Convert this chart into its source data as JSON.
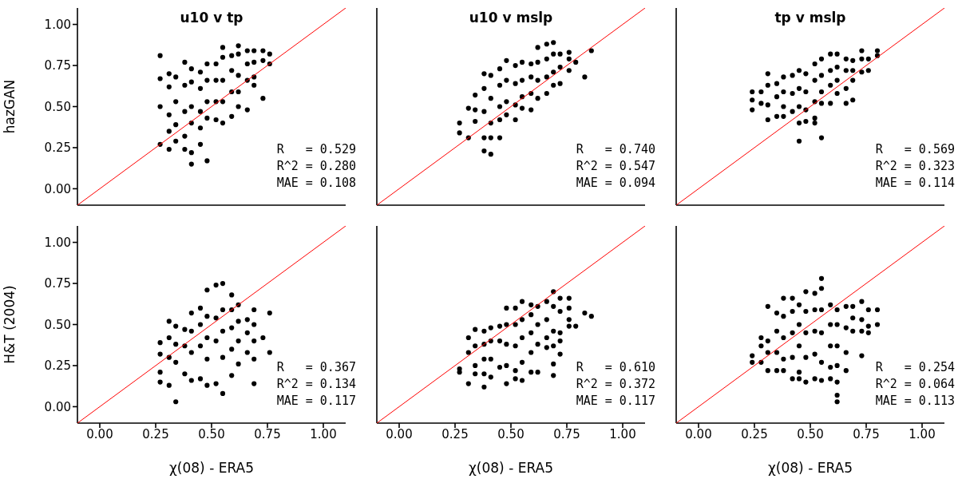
{
  "chart_data": [
    {
      "type": "scatter",
      "title": "u10 v tp",
      "ylabel": "hazGAN",
      "xlim": [
        -0.1,
        1.1
      ],
      "ylim": [
        -0.1,
        1.1
      ],
      "xticks": [
        {
          "value": 0,
          "label": null
        },
        {
          "value": 0.25,
          "label": null
        },
        {
          "value": 0.5,
          "label": null
        },
        {
          "value": 0.75,
          "label": null
        },
        {
          "value": 1,
          "label": null
        }
      ],
      "yticks": [
        {
          "value": 0,
          "label": "0.00"
        },
        {
          "value": 0.25,
          "label": "0.25"
        },
        {
          "value": 0.5,
          "label": "0.50"
        },
        {
          "value": 0.75,
          "label": "0.75"
        },
        {
          "value": 1,
          "label": "1.00"
        }
      ],
      "tick_labels": "y",
      "annotations": [
        "R   = 0.529",
        "R^2 = 0.280",
        "MAE = 0.108"
      ],
      "series": [
        {
          "type": "scatter",
          "marker": "circle",
          "color": "#000000",
          "x": [
            0.27,
            0.27,
            0.27,
            0.27,
            0.31,
            0.31,
            0.31,
            0.31,
            0.31,
            0.34,
            0.34,
            0.34,
            0.34,
            0.38,
            0.38,
            0.38,
            0.38,
            0.38,
            0.41,
            0.41,
            0.41,
            0.41,
            0.41,
            0.41,
            0.45,
            0.45,
            0.45,
            0.45,
            0.45,
            0.48,
            0.48,
            0.48,
            0.48,
            0.48,
            0.52,
            0.52,
            0.52,
            0.52,
            0.55,
            0.55,
            0.55,
            0.55,
            0.55,
            0.59,
            0.59,
            0.59,
            0.59,
            0.62,
            0.62,
            0.62,
            0.62,
            0.62,
            0.66,
            0.66,
            0.66,
            0.66,
            0.69,
            0.69,
            0.69,
            0.69,
            0.73,
            0.73,
            0.73,
            0.76,
            0.76
          ],
          "values": [
            0.81,
            0.67,
            0.5,
            0.27,
            0.7,
            0.62,
            0.45,
            0.35,
            0.24,
            0.68,
            0.53,
            0.39,
            0.29,
            0.77,
            0.63,
            0.47,
            0.32,
            0.24,
            0.73,
            0.65,
            0.5,
            0.4,
            0.22,
            0.15,
            0.71,
            0.61,
            0.47,
            0.37,
            0.27,
            0.76,
            0.66,
            0.53,
            0.43,
            0.17,
            0.76,
            0.66,
            0.53,
            0.42,
            0.86,
            0.8,
            0.66,
            0.53,
            0.4,
            0.81,
            0.72,
            0.59,
            0.44,
            0.87,
            0.82,
            0.69,
            0.59,
            0.5,
            0.84,
            0.76,
            0.66,
            0.48,
            0.84,
            0.77,
            0.68,
            0.63,
            0.84,
            0.78,
            0.55,
            0.82,
            0.76
          ]
        },
        {
          "type": "line",
          "marker": "none",
          "color": "#ff0000",
          "x": [
            -0.1,
            1.1
          ],
          "values": [
            -0.1,
            1.1
          ]
        }
      ]
    },
    {
      "type": "scatter",
      "title": "u10 v mslp",
      "xlim": [
        -0.1,
        1.1
      ],
      "ylim": [
        -0.1,
        1.1
      ],
      "xticks": [
        {
          "value": 0,
          "label": null
        },
        {
          "value": 0.25,
          "label": null
        },
        {
          "value": 0.5,
          "label": null
        },
        {
          "value": 0.75,
          "label": null
        },
        {
          "value": 1,
          "label": null
        }
      ],
      "yticks": [
        {
          "value": 0,
          "label": null
        },
        {
          "value": 0.25,
          "label": null
        },
        {
          "value": 0.5,
          "label": null
        },
        {
          "value": 0.75,
          "label": null
        },
        {
          "value": 1,
          "label": null
        }
      ],
      "tick_labels": false,
      "annotations": [
        "R   = 0.740",
        "R^2 = 0.547",
        "MAE = 0.094"
      ],
      "series": [
        {
          "type": "scatter",
          "marker": "circle",
          "color": "#000000",
          "x": [
            0.27,
            0.27,
            0.31,
            0.31,
            0.34,
            0.34,
            0.34,
            0.38,
            0.38,
            0.38,
            0.38,
            0.38,
            0.41,
            0.41,
            0.41,
            0.41,
            0.41,
            0.45,
            0.45,
            0.45,
            0.45,
            0.45,
            0.48,
            0.48,
            0.48,
            0.48,
            0.52,
            0.52,
            0.52,
            0.52,
            0.55,
            0.55,
            0.55,
            0.55,
            0.59,
            0.59,
            0.59,
            0.59,
            0.62,
            0.62,
            0.62,
            0.62,
            0.66,
            0.66,
            0.66,
            0.66,
            0.69,
            0.69,
            0.69,
            0.69,
            0.72,
            0.72,
            0.72,
            0.76,
            0.76,
            0.76,
            0.79,
            0.83,
            0.86
          ],
          "values": [
            0.4,
            0.34,
            0.49,
            0.31,
            0.57,
            0.48,
            0.41,
            0.7,
            0.61,
            0.47,
            0.31,
            0.23,
            0.69,
            0.55,
            0.4,
            0.31,
            0.21,
            0.73,
            0.63,
            0.5,
            0.42,
            0.31,
            0.78,
            0.66,
            0.53,
            0.45,
            0.75,
            0.64,
            0.51,
            0.42,
            0.77,
            0.66,
            0.56,
            0.49,
            0.76,
            0.68,
            0.58,
            0.48,
            0.86,
            0.77,
            0.66,
            0.55,
            0.88,
            0.79,
            0.68,
            0.58,
            0.89,
            0.82,
            0.71,
            0.63,
            0.82,
            0.74,
            0.64,
            0.83,
            0.79,
            0.72,
            0.77,
            0.68,
            0.84
          ]
        },
        {
          "type": "line",
          "marker": "none",
          "color": "#ff0000",
          "x": [
            -0.1,
            1.1
          ],
          "values": [
            -0.1,
            1.1
          ]
        }
      ]
    },
    {
      "type": "scatter",
      "title": "tp v mslp",
      "xlim": [
        -0.1,
        1.1
      ],
      "ylim": [
        -0.1,
        1.1
      ],
      "xticks": [
        {
          "value": 0,
          "label": null
        },
        {
          "value": 0.25,
          "label": null
        },
        {
          "value": 0.5,
          "label": null
        },
        {
          "value": 0.75,
          "label": null
        },
        {
          "value": 1,
          "label": null
        }
      ],
      "yticks": [
        {
          "value": 0,
          "label": null
        },
        {
          "value": 0.25,
          "label": null
        },
        {
          "value": 0.5,
          "label": null
        },
        {
          "value": 0.75,
          "label": null
        },
        {
          "value": 1,
          "label": null
        }
      ],
      "tick_labels": false,
      "annotations": [
        "R   = 0.569",
        "R^2 = 0.323",
        "MAE = 0.114"
      ],
      "series": [
        {
          "type": "scatter",
          "marker": "circle",
          "color": "#000000",
          "x": [
            0.24,
            0.24,
            0.24,
            0.28,
            0.28,
            0.31,
            0.31,
            0.31,
            0.31,
            0.35,
            0.35,
            0.35,
            0.38,
            0.38,
            0.38,
            0.38,
            0.42,
            0.42,
            0.42,
            0.45,
            0.45,
            0.45,
            0.45,
            0.45,
            0.48,
            0.48,
            0.48,
            0.48,
            0.52,
            0.52,
            0.52,
            0.52,
            0.52,
            0.55,
            0.55,
            0.55,
            0.55,
            0.55,
            0.59,
            0.59,
            0.59,
            0.59,
            0.62,
            0.62,
            0.62,
            0.62,
            0.66,
            0.66,
            0.66,
            0.66,
            0.69,
            0.69,
            0.69,
            0.69,
            0.73,
            0.73,
            0.73,
            0.76,
            0.76,
            0.8,
            0.8
          ],
          "values": [
            0.59,
            0.54,
            0.48,
            0.59,
            0.52,
            0.7,
            0.63,
            0.51,
            0.42,
            0.64,
            0.56,
            0.44,
            0.68,
            0.59,
            0.5,
            0.44,
            0.69,
            0.58,
            0.47,
            0.72,
            0.61,
            0.5,
            0.4,
            0.29,
            0.7,
            0.59,
            0.48,
            0.41,
            0.76,
            0.66,
            0.53,
            0.43,
            0.4,
            0.79,
            0.69,
            0.59,
            0.52,
            0.31,
            0.82,
            0.72,
            0.63,
            0.52,
            0.82,
            0.74,
            0.66,
            0.58,
            0.79,
            0.72,
            0.61,
            0.52,
            0.78,
            0.72,
            0.66,
            0.54,
            0.84,
            0.79,
            0.71,
            0.79,
            0.72,
            0.84,
            0.81
          ]
        },
        {
          "type": "line",
          "marker": "none",
          "color": "#ff0000",
          "x": [
            -0.1,
            1.1
          ],
          "values": [
            -0.1,
            1.1
          ]
        }
      ]
    },
    {
      "type": "scatter",
      "ylabel": "H&T (2004)",
      "xlabel": "χ(08) - ERA5",
      "xlim": [
        -0.1,
        1.1
      ],
      "ylim": [
        -0.1,
        1.1
      ],
      "xticks": [
        {
          "value": 0,
          "label": "0.00"
        },
        {
          "value": 0.25,
          "label": "0.25"
        },
        {
          "value": 0.5,
          "label": "0.50"
        },
        {
          "value": 0.75,
          "label": "0.75"
        },
        {
          "value": 1,
          "label": "1.00"
        }
      ],
      "yticks": [
        {
          "value": 0,
          "label": "0.00"
        },
        {
          "value": 0.25,
          "label": "0.25"
        },
        {
          "value": 0.5,
          "label": "0.50"
        },
        {
          "value": 0.75,
          "label": "0.75"
        },
        {
          "value": 1,
          "label": "1.00"
        }
      ],
      "annotations": [
        "R   = 0.367",
        "R^2 = 0.134",
        "MAE = 0.117"
      ],
      "series": [
        {
          "type": "scatter",
          "marker": "circle",
          "color": "#000000",
          "x": [
            0.27,
            0.27,
            0.27,
            0.27,
            0.31,
            0.31,
            0.31,
            0.31,
            0.34,
            0.34,
            0.34,
            0.34,
            0.38,
            0.38,
            0.38,
            0.41,
            0.41,
            0.41,
            0.41,
            0.45,
            0.45,
            0.45,
            0.45,
            0.48,
            0.48,
            0.48,
            0.48,
            0.48,
            0.52,
            0.52,
            0.52,
            0.52,
            0.55,
            0.55,
            0.55,
            0.55,
            0.55,
            0.59,
            0.59,
            0.59,
            0.59,
            0.59,
            0.62,
            0.62,
            0.62,
            0.62,
            0.66,
            0.66,
            0.66,
            0.69,
            0.69,
            0.69,
            0.69,
            0.69,
            0.73,
            0.76,
            0.76
          ],
          "values": [
            0.39,
            0.32,
            0.21,
            0.15,
            0.52,
            0.42,
            0.3,
            0.13,
            0.49,
            0.38,
            0.27,
            0.03,
            0.47,
            0.37,
            0.2,
            0.57,
            0.46,
            0.33,
            0.16,
            0.6,
            0.5,
            0.37,
            0.17,
            0.71,
            0.55,
            0.42,
            0.29,
            0.13,
            0.74,
            0.54,
            0.4,
            0.14,
            0.75,
            0.59,
            0.46,
            0.3,
            0.08,
            0.68,
            0.59,
            0.48,
            0.35,
            0.19,
            0.62,
            0.52,
            0.4,
            0.26,
            0.53,
            0.45,
            0.33,
            0.59,
            0.5,
            0.4,
            0.29,
            0.14,
            0.42,
            0.57,
            0.33
          ]
        },
        {
          "type": "line",
          "marker": "none",
          "color": "#ff0000",
          "x": [
            -0.1,
            1.1
          ],
          "values": [
            -0.1,
            1.1
          ]
        }
      ]
    },
    {
      "type": "scatter",
      "xlabel": "χ(08) - ERA5",
      "xlim": [
        -0.1,
        1.1
      ],
      "ylim": [
        -0.1,
        1.1
      ],
      "xticks": [
        {
          "value": 0,
          "label": "0.00"
        },
        {
          "value": 0.25,
          "label": "0.25"
        },
        {
          "value": 0.5,
          "label": "0.50"
        },
        {
          "value": 0.75,
          "label": "0.75"
        },
        {
          "value": 1,
          "label": "1.00"
        }
      ],
      "yticks": [
        {
          "value": 0,
          "label": null
        },
        {
          "value": 0.25,
          "label": null
        },
        {
          "value": 0.5,
          "label": null
        },
        {
          "value": 0.75,
          "label": null
        },
        {
          "value": 1,
          "label": null
        }
      ],
      "tick_labels": "x",
      "annotations": [
        "R   = 0.610",
        "R^2 = 0.372",
        "MAE = 0.117"
      ],
      "series": [
        {
          "type": "scatter",
          "marker": "circle",
          "color": "#000000",
          "x": [
            0.27,
            0.27,
            0.31,
            0.31,
            0.31,
            0.34,
            0.34,
            0.34,
            0.34,
            0.38,
            0.38,
            0.38,
            0.38,
            0.38,
            0.41,
            0.41,
            0.41,
            0.41,
            0.45,
            0.45,
            0.45,
            0.48,
            0.48,
            0.48,
            0.48,
            0.48,
            0.52,
            0.52,
            0.52,
            0.52,
            0.52,
            0.55,
            0.55,
            0.55,
            0.55,
            0.55,
            0.59,
            0.59,
            0.59,
            0.59,
            0.59,
            0.62,
            0.62,
            0.62,
            0.62,
            0.66,
            0.66,
            0.66,
            0.66,
            0.69,
            0.69,
            0.69,
            0.69,
            0.69,
            0.69,
            0.72,
            0.72,
            0.72,
            0.72,
            0.72,
            0.76,
            0.76,
            0.76,
            0.76,
            0.79,
            0.83,
            0.86
          ],
          "values": [
            0.23,
            0.21,
            0.42,
            0.33,
            0.14,
            0.47,
            0.37,
            0.25,
            0.2,
            0.46,
            0.38,
            0.29,
            0.2,
            0.12,
            0.48,
            0.4,
            0.29,
            0.18,
            0.49,
            0.4,
            0.24,
            0.6,
            0.5,
            0.38,
            0.25,
            0.14,
            0.6,
            0.5,
            0.37,
            0.22,
            0.17,
            0.64,
            0.53,
            0.42,
            0.27,
            0.16,
            0.62,
            0.56,
            0.45,
            0.33,
            0.21,
            0.61,
            0.5,
            0.38,
            0.21,
            0.64,
            0.53,
            0.42,
            0.36,
            0.7,
            0.61,
            0.46,
            0.37,
            0.26,
            0.19,
            0.66,
            0.58,
            0.45,
            0.4,
            0.32,
            0.66,
            0.6,
            0.53,
            0.49,
            0.49,
            0.57,
            0.55
          ]
        },
        {
          "type": "line",
          "marker": "none",
          "color": "#ff0000",
          "x": [
            -0.1,
            1.1
          ],
          "values": [
            -0.1,
            1.1
          ]
        }
      ]
    },
    {
      "type": "scatter",
      "xlabel": "χ(08) - ERA5",
      "xlim": [
        -0.1,
        1.1
      ],
      "ylim": [
        -0.1,
        1.1
      ],
      "xticks": [
        {
          "value": 0,
          "label": "0.00"
        },
        {
          "value": 0.25,
          "label": "0.25"
        },
        {
          "value": 0.5,
          "label": "0.50"
        },
        {
          "value": 0.75,
          "label": "0.75"
        },
        {
          "value": 1,
          "label": "1.00"
        }
      ],
      "yticks": [
        {
          "value": 0,
          "label": null
        },
        {
          "value": 0.25,
          "label": null
        },
        {
          "value": 0.5,
          "label": null
        },
        {
          "value": 0.75,
          "label": null
        },
        {
          "value": 1,
          "label": null
        }
      ],
      "tick_labels": "x",
      "annotations": [
        "R   = 0.254",
        "R^2 = 0.064",
        "MAE = 0.113"
      ],
      "series": [
        {
          "type": "scatter",
          "marker": "circle",
          "color": "#000000",
          "x": [
            0.24,
            0.24,
            0.28,
            0.28,
            0.28,
            0.31,
            0.31,
            0.31,
            0.31,
            0.35,
            0.35,
            0.35,
            0.35,
            0.38,
            0.38,
            0.38,
            0.38,
            0.38,
            0.42,
            0.42,
            0.42,
            0.42,
            0.42,
            0.45,
            0.45,
            0.45,
            0.45,
            0.45,
            0.48,
            0.48,
            0.48,
            0.48,
            0.48,
            0.52,
            0.52,
            0.52,
            0.52,
            0.52,
            0.55,
            0.55,
            0.55,
            0.55,
            0.55,
            0.55,
            0.59,
            0.59,
            0.59,
            0.59,
            0.59,
            0.62,
            0.62,
            0.62,
            0.62,
            0.62,
            0.62,
            0.62,
            0.66,
            0.66,
            0.66,
            0.66,
            0.69,
            0.69,
            0.69,
            0.73,
            0.73,
            0.73,
            0.73,
            0.76,
            0.76,
            0.76,
            0.8,
            0.8
          ],
          "values": [
            0.31,
            0.27,
            0.42,
            0.37,
            0.27,
            0.61,
            0.4,
            0.33,
            0.22,
            0.57,
            0.46,
            0.33,
            0.22,
            0.66,
            0.55,
            0.42,
            0.29,
            0.22,
            0.66,
            0.58,
            0.45,
            0.3,
            0.17,
            0.62,
            0.5,
            0.37,
            0.21,
            0.17,
            0.7,
            0.58,
            0.45,
            0.3,
            0.15,
            0.69,
            0.59,
            0.46,
            0.32,
            0.17,
            0.78,
            0.72,
            0.59,
            0.45,
            0.27,
            0.16,
            0.62,
            0.5,
            0.37,
            0.24,
            0.17,
            0.59,
            0.5,
            0.37,
            0.25,
            0.15,
            0.07,
            0.03,
            0.61,
            0.48,
            0.33,
            0.22,
            0.61,
            0.54,
            0.46,
            0.64,
            0.53,
            0.46,
            0.31,
            0.59,
            0.49,
            0.45,
            0.59,
            0.5
          ]
        },
        {
          "type": "line",
          "marker": "none",
          "color": "#ff0000",
          "x": [
            -0.1,
            1.1
          ],
          "values": [
            -0.1,
            1.1
          ]
        }
      ]
    }
  ]
}
